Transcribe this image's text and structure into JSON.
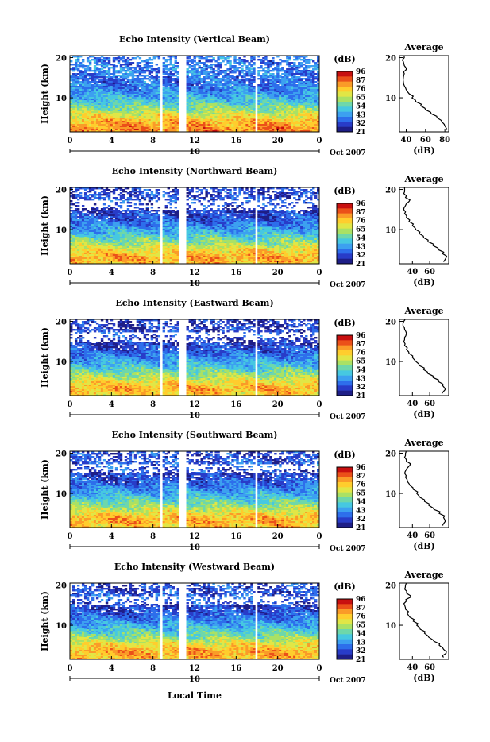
{
  "figure": {
    "shared_xlabel": "Local Time",
    "date_label": "Oct 2007",
    "day_label": "10",
    "colorbar_unit": "(dB)",
    "colorbar_ticks": [
      "96",
      "87",
      "76",
      "65",
      "54",
      "43",
      "32",
      "21"
    ],
    "profile_title": "Average",
    "profile_xlabel": "(dB)",
    "colors": {
      "high": "#c80000",
      "mid": "#ffd21e",
      "low": "#20208c"
    }
  },
  "chart_data": [
    {
      "type": "heatmap",
      "title": "Echo Intensity (Vertical Beam)",
      "ylabel": "Height (km)",
      "x_ticks": [
        "0",
        "4",
        "8",
        "12",
        "16",
        "20",
        "0"
      ],
      "y_ticks": [
        "20",
        "10"
      ],
      "xlim": [
        0,
        24
      ],
      "ylim": [
        1.5,
        20.5
      ],
      "zlim": [
        21,
        96
      ],
      "data_gaps_hours": [
        [
          8.7,
          9.0
        ],
        [
          10.6,
          11.2
        ],
        [
          17.8,
          18.1
        ]
      ],
      "profile": {
        "x_ticks": [
          "40",
          "60",
          "80"
        ],
        "xlim": [
          33,
          84
        ],
        "height_km": [
          2,
          3,
          4,
          5,
          6,
          7,
          8,
          9,
          10,
          11,
          12,
          13,
          14,
          15,
          16,
          17,
          18,
          19,
          20
        ],
        "mean_db": [
          82,
          80,
          77,
          72,
          66,
          60,
          55,
          50,
          46,
          43,
          40,
          38,
          37,
          37,
          38,
          40,
          38,
          37,
          38
        ]
      }
    },
    {
      "type": "heatmap",
      "title": "Echo Intensity (Northward Beam)",
      "ylabel": "Height (km)",
      "x_ticks": [
        "0",
        "4",
        "8",
        "12",
        "16",
        "20",
        "0"
      ],
      "y_ticks": [
        "20",
        "10"
      ],
      "xlim": [
        0,
        24
      ],
      "ylim": [
        1.5,
        20.5
      ],
      "zlim": [
        21,
        96
      ],
      "data_gaps_hours": [
        [
          8.7,
          9.0
        ],
        [
          10.6,
          11.2
        ],
        [
          17.8,
          18.1
        ]
      ],
      "profile": {
        "x_ticks": [
          "40",
          "60"
        ],
        "xlim": [
          25,
          82
        ],
        "height_km": [
          2,
          3,
          4,
          5,
          6,
          7,
          8,
          9,
          10,
          11,
          12,
          13,
          14,
          15,
          16,
          17,
          18,
          19,
          20
        ],
        "mean_db": [
          76,
          79,
          75,
          70,
          64,
          58,
          53,
          48,
          44,
          40,
          36,
          33,
          31,
          30,
          32,
          36,
          32,
          30,
          31
        ]
      }
    },
    {
      "type": "heatmap",
      "title": "Echo Intensity (Eastward Beam)",
      "ylabel": "Height (km)",
      "x_ticks": [
        "0",
        "4",
        "8",
        "12",
        "16",
        "20",
        "0"
      ],
      "y_ticks": [
        "20",
        "10"
      ],
      "xlim": [
        0,
        24
      ],
      "ylim": [
        1.5,
        20.5
      ],
      "zlim": [
        21,
        96
      ],
      "data_gaps_hours": [
        [
          8.7,
          9.0
        ],
        [
          10.6,
          11.2
        ],
        [
          17.8,
          18.1
        ]
      ],
      "profile": {
        "x_ticks": [
          "40",
          "60"
        ],
        "xlim": [
          25,
          82
        ],
        "height_km": [
          2,
          3,
          4,
          5,
          6,
          7,
          8,
          9,
          10,
          11,
          12,
          13,
          14,
          15,
          16,
          17,
          18,
          19,
          20
        ],
        "mean_db": [
          74,
          78,
          75,
          70,
          64,
          58,
          53,
          48,
          44,
          40,
          36,
          33,
          31,
          30,
          31,
          33,
          31,
          29,
          30
        ]
      }
    },
    {
      "type": "heatmap",
      "title": "Echo Intensity (Southward Beam)",
      "ylabel": "Height (km)",
      "x_ticks": [
        "0",
        "4",
        "8",
        "12",
        "16",
        "20",
        "0"
      ],
      "y_ticks": [
        "20",
        "10"
      ],
      "xlim": [
        0,
        24
      ],
      "ylim": [
        1.5,
        20.5
      ],
      "zlim": [
        21,
        96
      ],
      "data_gaps_hours": [
        [
          8.7,
          9.0
        ],
        [
          10.6,
          11.2
        ],
        [
          17.8,
          18.1
        ]
      ],
      "profile": {
        "x_ticks": [
          "40",
          "60"
        ],
        "xlim": [
          25,
          82
        ],
        "height_km": [
          2,
          3,
          4,
          5,
          6,
          7,
          8,
          9,
          10,
          11,
          12,
          13,
          14,
          15,
          16,
          17,
          18,
          19,
          20
        ],
        "mean_db": [
          75,
          78,
          76,
          71,
          65,
          59,
          54,
          49,
          45,
          41,
          37,
          34,
          32,
          31,
          33,
          37,
          33,
          31,
          32
        ]
      }
    },
    {
      "type": "heatmap",
      "title": "Echo Intensity (Westward Beam)",
      "ylabel": "Height (km)",
      "x_ticks": [
        "0",
        "4",
        "8",
        "12",
        "16",
        "20",
        "0"
      ],
      "y_ticks": [
        "20",
        "10"
      ],
      "xlim": [
        0,
        24
      ],
      "ylim": [
        1.5,
        20.5
      ],
      "zlim": [
        21,
        96
      ],
      "data_gaps_hours": [
        [
          8.7,
          9.0
        ],
        [
          10.6,
          11.2
        ],
        [
          17.8,
          18.1
        ]
      ],
      "profile": {
        "x_ticks": [
          "40",
          "60"
        ],
        "xlim": [
          25,
          82
        ],
        "height_km": [
          2,
          3,
          4,
          5,
          6,
          7,
          8,
          9,
          10,
          11,
          12,
          13,
          14,
          15,
          16,
          17,
          18,
          19,
          20
        ],
        "mean_db": [
          76,
          79,
          76,
          71,
          65,
          59,
          54,
          49,
          45,
          41,
          37,
          34,
          32,
          31,
          33,
          38,
          33,
          31,
          32
        ]
      }
    }
  ]
}
